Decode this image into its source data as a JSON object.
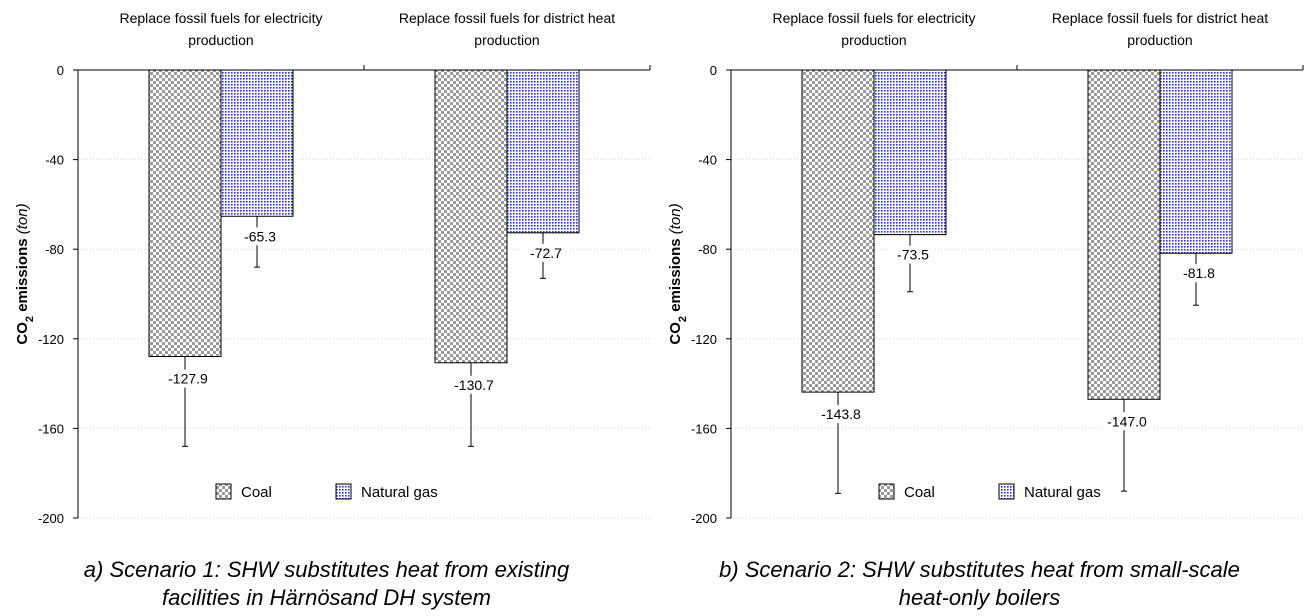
{
  "ylabel_main": "CO",
  "ylabel_sub": "2",
  "ylabel_rest": " emissions ",
  "ylabel_unit": "(ton)",
  "legend": {
    "coal": "Coal",
    "natural_gas": "Natural gas"
  },
  "colors": {
    "coal_fill": "#9a9a9a",
    "gas_fill": "#2b2bd6"
  },
  "chart_data": [
    {
      "type": "bar",
      "categories": [
        "Replace fossil fuels for electricity production",
        "Replace fossil fuels for district heat production"
      ],
      "category_lines": [
        [
          "Replace fossil fuels for electricity",
          "production"
        ],
        [
          "Replace fossil fuels for district heat",
          "production"
        ]
      ],
      "series": [
        {
          "name": "Coal",
          "values": [
            -127.9,
            -130.7
          ],
          "error_low": [
            -168,
            -168
          ]
        },
        {
          "name": "Natural gas",
          "values": [
            -65.3,
            -72.7
          ],
          "error_low": [
            -88,
            -93
          ]
        }
      ],
      "value_labels": [
        [
          "-127.9",
          "-130.7"
        ],
        [
          "-65.3",
          "-72.7"
        ]
      ],
      "ylim": [
        -200,
        0
      ],
      "yticks": [
        0,
        -40,
        -80,
        -120,
        -160,
        -200
      ],
      "caption_lines": [
        "a) Scenario 1: SHW substitutes heat from existing",
        "facilities in Härnösand DH system"
      ]
    },
    {
      "type": "bar",
      "categories": [
        "Replace fossil fuels for electricity production",
        "Replace fossil fuels for district heat production"
      ],
      "category_lines": [
        [
          "Replace fossil fuels for electricity",
          "production"
        ],
        [
          "Replace fossil fuels for district heat",
          "production"
        ]
      ],
      "series": [
        {
          "name": "Coal",
          "values": [
            -143.8,
            -147.0
          ],
          "error_low": [
            -189,
            -188
          ]
        },
        {
          "name": "Natural gas",
          "values": [
            -73.5,
            -81.8
          ],
          "error_low": [
            -99,
            -105
          ]
        }
      ],
      "value_labels": [
        [
          "-143.8",
          "-147.0"
        ],
        [
          "-73.5",
          "-81.8"
        ]
      ],
      "ylim": [
        -200,
        0
      ],
      "yticks": [
        0,
        -40,
        -80,
        -120,
        -160,
        -200
      ],
      "caption_lines": [
        "b) Scenario 2: SHW substitutes heat from small-scale",
        "heat-only boilers"
      ]
    }
  ]
}
